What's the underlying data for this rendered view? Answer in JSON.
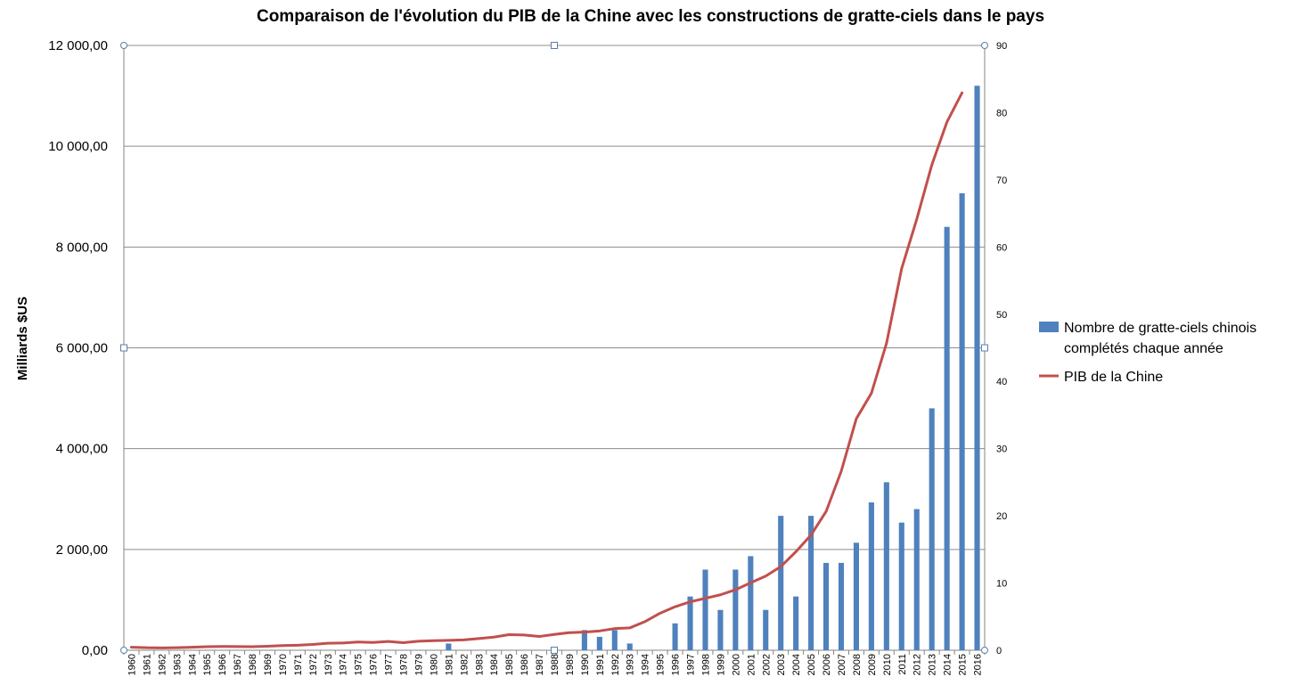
{
  "chart_data": {
    "type": "bar+line",
    "title": "Comparaison de l'évolution du PIB de la Chine avec les constructions de gratte-ciels dans le pays",
    "ylabel": "Milliards $US",
    "y2label": "",
    "ylim": [
      0,
      12000
    ],
    "y2lim": [
      0,
      90
    ],
    "yticks": [
      "0,00",
      "2 000,00",
      "4 000,00",
      "6 000,00",
      "8 000,00",
      "10 000,00",
      "12 000,00"
    ],
    "y2ticks": [
      "0",
      "10",
      "20",
      "30",
      "40",
      "50",
      "60",
      "70",
      "80",
      "90"
    ],
    "grid": true,
    "legend_position": "right",
    "categories": [
      "1960",
      "1961",
      "1962",
      "1963",
      "1964",
      "1965",
      "1966",
      "1967",
      "1968",
      "1969",
      "1970",
      "1971",
      "1972",
      "1973",
      "1974",
      "1975",
      "1976",
      "1977",
      "1978",
      "1979",
      "1980",
      "1981",
      "1982",
      "1983",
      "1984",
      "1985",
      "1986",
      "1987",
      "1988",
      "1989",
      "1990",
      "1991",
      "1992",
      "1993",
      "1994",
      "1995",
      "1996",
      "1997",
      "1998",
      "1999",
      "2000",
      "2001",
      "2002",
      "2003",
      "2004",
      "2005",
      "2006",
      "2007",
      "2008",
      "2009",
      "2010",
      "2011",
      "2012",
      "2013",
      "2014",
      "2015",
      "2016"
    ],
    "series": [
      {
        "name": "Nombre de gratte-ciels chinois complétés chaque année",
        "kind": "bar",
        "axis": "right",
        "color": "#4f81bd",
        "values": [
          0,
          0,
          0,
          0,
          0,
          0,
          0,
          0,
          0,
          0,
          0,
          0,
          0,
          0,
          0,
          0,
          0,
          0,
          0,
          0,
          0,
          1,
          0,
          0,
          0,
          0,
          0,
          0,
          0,
          0,
          3,
          2,
          3,
          1,
          0,
          0,
          4,
          8,
          12,
          6,
          12,
          14,
          6,
          20,
          8,
          20,
          13,
          13,
          16,
          22,
          25,
          19,
          21,
          36,
          63,
          68,
          84
        ]
      },
      {
        "name": "PIB de la Chine",
        "kind": "line",
        "axis": "left",
        "color": "#c0504d",
        "values": [
          60,
          50,
          47,
          51,
          60,
          70,
          76,
          73,
          70,
          80,
          92,
          100,
          114,
          140,
          144,
          163,
          154,
          175,
          150,
          178,
          191,
          196,
          205,
          231,
          260,
          310,
          302,
          273,
          313,
          350,
          361,
          383,
          430,
          443,
          567,
          734,
          863,
          961,
          1030,
          1100,
          1200,
          1339,
          1471,
          1660,
          1955,
          2286,
          2753,
          3550,
          4594,
          5100,
          6090,
          7570,
          8550,
          9630,
          10480,
          11060,
          null
        ]
      }
    ]
  }
}
